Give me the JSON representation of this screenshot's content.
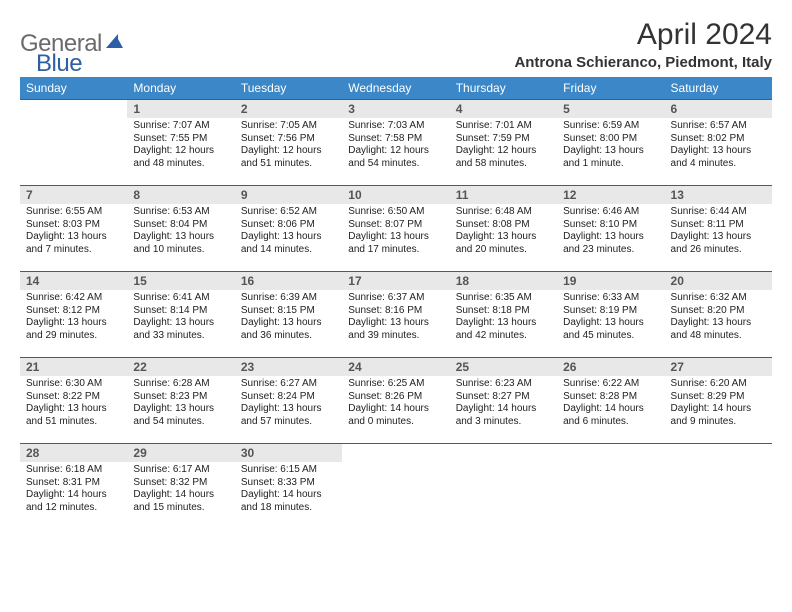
{
  "logo": {
    "gray": "General",
    "blue": "Blue"
  },
  "title": "April 2024",
  "subtitle": "Antrona Schieranco, Piedmont, Italy",
  "colors": {
    "header_bg": "#3b87c8",
    "row_border": "#2d5fa4",
    "daynum_bg": "#e8e8e8",
    "logo_gray": "#6b6b6b",
    "logo_blue": "#2d5fa4"
  },
  "weekdays": [
    "Sunday",
    "Monday",
    "Tuesday",
    "Wednesday",
    "Thursday",
    "Friday",
    "Saturday"
  ],
  "weeks": [
    [
      {
        "n": "",
        "sr": "",
        "ss": "",
        "d1": "",
        "d2": ""
      },
      {
        "n": "1",
        "sr": "Sunrise: 7:07 AM",
        "ss": "Sunset: 7:55 PM",
        "d1": "Daylight: 12 hours",
        "d2": "and 48 minutes."
      },
      {
        "n": "2",
        "sr": "Sunrise: 7:05 AM",
        "ss": "Sunset: 7:56 PM",
        "d1": "Daylight: 12 hours",
        "d2": "and 51 minutes."
      },
      {
        "n": "3",
        "sr": "Sunrise: 7:03 AM",
        "ss": "Sunset: 7:58 PM",
        "d1": "Daylight: 12 hours",
        "d2": "and 54 minutes."
      },
      {
        "n": "4",
        "sr": "Sunrise: 7:01 AM",
        "ss": "Sunset: 7:59 PM",
        "d1": "Daylight: 12 hours",
        "d2": "and 58 minutes."
      },
      {
        "n": "5",
        "sr": "Sunrise: 6:59 AM",
        "ss": "Sunset: 8:00 PM",
        "d1": "Daylight: 13 hours",
        "d2": "and 1 minute."
      },
      {
        "n": "6",
        "sr": "Sunrise: 6:57 AM",
        "ss": "Sunset: 8:02 PM",
        "d1": "Daylight: 13 hours",
        "d2": "and 4 minutes."
      }
    ],
    [
      {
        "n": "7",
        "sr": "Sunrise: 6:55 AM",
        "ss": "Sunset: 8:03 PM",
        "d1": "Daylight: 13 hours",
        "d2": "and 7 minutes."
      },
      {
        "n": "8",
        "sr": "Sunrise: 6:53 AM",
        "ss": "Sunset: 8:04 PM",
        "d1": "Daylight: 13 hours",
        "d2": "and 10 minutes."
      },
      {
        "n": "9",
        "sr": "Sunrise: 6:52 AM",
        "ss": "Sunset: 8:06 PM",
        "d1": "Daylight: 13 hours",
        "d2": "and 14 minutes."
      },
      {
        "n": "10",
        "sr": "Sunrise: 6:50 AM",
        "ss": "Sunset: 8:07 PM",
        "d1": "Daylight: 13 hours",
        "d2": "and 17 minutes."
      },
      {
        "n": "11",
        "sr": "Sunrise: 6:48 AM",
        "ss": "Sunset: 8:08 PM",
        "d1": "Daylight: 13 hours",
        "d2": "and 20 minutes."
      },
      {
        "n": "12",
        "sr": "Sunrise: 6:46 AM",
        "ss": "Sunset: 8:10 PM",
        "d1": "Daylight: 13 hours",
        "d2": "and 23 minutes."
      },
      {
        "n": "13",
        "sr": "Sunrise: 6:44 AM",
        "ss": "Sunset: 8:11 PM",
        "d1": "Daylight: 13 hours",
        "d2": "and 26 minutes."
      }
    ],
    [
      {
        "n": "14",
        "sr": "Sunrise: 6:42 AM",
        "ss": "Sunset: 8:12 PM",
        "d1": "Daylight: 13 hours",
        "d2": "and 29 minutes."
      },
      {
        "n": "15",
        "sr": "Sunrise: 6:41 AM",
        "ss": "Sunset: 8:14 PM",
        "d1": "Daylight: 13 hours",
        "d2": "and 33 minutes."
      },
      {
        "n": "16",
        "sr": "Sunrise: 6:39 AM",
        "ss": "Sunset: 8:15 PM",
        "d1": "Daylight: 13 hours",
        "d2": "and 36 minutes."
      },
      {
        "n": "17",
        "sr": "Sunrise: 6:37 AM",
        "ss": "Sunset: 8:16 PM",
        "d1": "Daylight: 13 hours",
        "d2": "and 39 minutes."
      },
      {
        "n": "18",
        "sr": "Sunrise: 6:35 AM",
        "ss": "Sunset: 8:18 PM",
        "d1": "Daylight: 13 hours",
        "d2": "and 42 minutes."
      },
      {
        "n": "19",
        "sr": "Sunrise: 6:33 AM",
        "ss": "Sunset: 8:19 PM",
        "d1": "Daylight: 13 hours",
        "d2": "and 45 minutes."
      },
      {
        "n": "20",
        "sr": "Sunrise: 6:32 AM",
        "ss": "Sunset: 8:20 PM",
        "d1": "Daylight: 13 hours",
        "d2": "and 48 minutes."
      }
    ],
    [
      {
        "n": "21",
        "sr": "Sunrise: 6:30 AM",
        "ss": "Sunset: 8:22 PM",
        "d1": "Daylight: 13 hours",
        "d2": "and 51 minutes."
      },
      {
        "n": "22",
        "sr": "Sunrise: 6:28 AM",
        "ss": "Sunset: 8:23 PM",
        "d1": "Daylight: 13 hours",
        "d2": "and 54 minutes."
      },
      {
        "n": "23",
        "sr": "Sunrise: 6:27 AM",
        "ss": "Sunset: 8:24 PM",
        "d1": "Daylight: 13 hours",
        "d2": "and 57 minutes."
      },
      {
        "n": "24",
        "sr": "Sunrise: 6:25 AM",
        "ss": "Sunset: 8:26 PM",
        "d1": "Daylight: 14 hours",
        "d2": "and 0 minutes."
      },
      {
        "n": "25",
        "sr": "Sunrise: 6:23 AM",
        "ss": "Sunset: 8:27 PM",
        "d1": "Daylight: 14 hours",
        "d2": "and 3 minutes."
      },
      {
        "n": "26",
        "sr": "Sunrise: 6:22 AM",
        "ss": "Sunset: 8:28 PM",
        "d1": "Daylight: 14 hours",
        "d2": "and 6 minutes."
      },
      {
        "n": "27",
        "sr": "Sunrise: 6:20 AM",
        "ss": "Sunset: 8:29 PM",
        "d1": "Daylight: 14 hours",
        "d2": "and 9 minutes."
      }
    ],
    [
      {
        "n": "28",
        "sr": "Sunrise: 6:18 AM",
        "ss": "Sunset: 8:31 PM",
        "d1": "Daylight: 14 hours",
        "d2": "and 12 minutes."
      },
      {
        "n": "29",
        "sr": "Sunrise: 6:17 AM",
        "ss": "Sunset: 8:32 PM",
        "d1": "Daylight: 14 hours",
        "d2": "and 15 minutes."
      },
      {
        "n": "30",
        "sr": "Sunrise: 6:15 AM",
        "ss": "Sunset: 8:33 PM",
        "d1": "Daylight: 14 hours",
        "d2": "and 18 minutes."
      },
      {
        "n": "",
        "sr": "",
        "ss": "",
        "d1": "",
        "d2": ""
      },
      {
        "n": "",
        "sr": "",
        "ss": "",
        "d1": "",
        "d2": ""
      },
      {
        "n": "",
        "sr": "",
        "ss": "",
        "d1": "",
        "d2": ""
      },
      {
        "n": "",
        "sr": "",
        "ss": "",
        "d1": "",
        "d2": ""
      }
    ]
  ]
}
